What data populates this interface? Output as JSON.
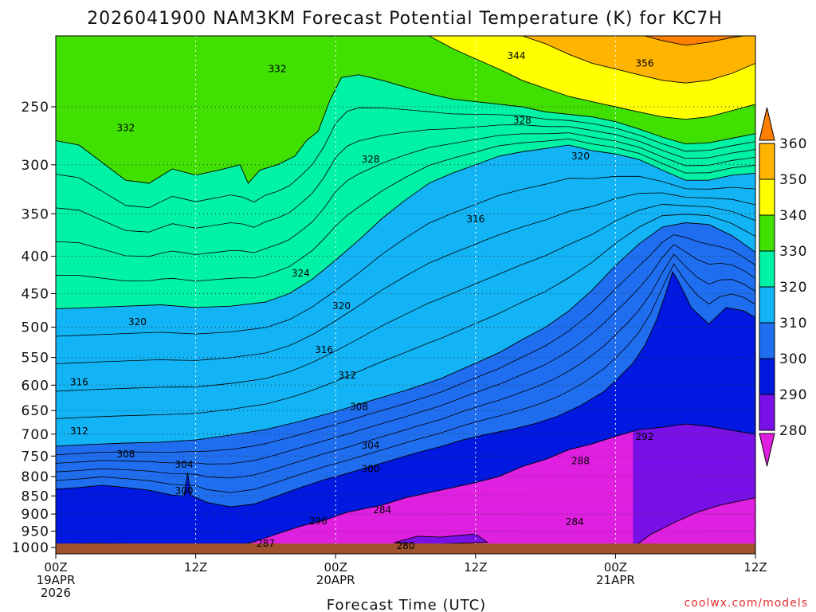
{
  "chart_data": {
    "type": "heatmap",
    "title": "2026041900 NAM3KM Forecast Potential Temperature (K) for KC7H",
    "xlabel": "Forecast Time (UTC)",
    "ylabel": "",
    "credit": "coolwx.com/models",
    "variable": "potential temperature",
    "units": "K",
    "x_range_hours": [
      0,
      60
    ],
    "y_axis_pressure": "hPa, log-pressure scale, inverted (1000 at bottom)",
    "y_range": [
      1020,
      200
    ],
    "x_ticks": [
      {
        "hour": 0,
        "labels": [
          "00Z",
          "19APR",
          "2026"
        ]
      },
      {
        "hour": 12,
        "labels": [
          "12Z"
        ]
      },
      {
        "hour": 24,
        "labels": [
          "00Z",
          "20APR"
        ]
      },
      {
        "hour": 36,
        "labels": [
          "12Z"
        ]
      },
      {
        "hour": 48,
        "labels": [
          "00Z",
          "21APR"
        ]
      },
      {
        "hour": 60,
        "labels": [
          "12Z"
        ]
      }
    ],
    "y_ticks": [
      250,
      300,
      350,
      400,
      450,
      500,
      550,
      600,
      650,
      700,
      750,
      800,
      850,
      900,
      950,
      1000
    ],
    "y_tick_labels": [
      "250",
      "300",
      "350",
      "400",
      "450",
      "500",
      "550",
      "600",
      "650",
      "700",
      "750",
      "800",
      "850",
      "900",
      "950",
      "1000"
    ],
    "colorbar": {
      "levels": [
        280,
        290,
        300,
        310,
        320,
        330,
        340,
        350,
        360
      ],
      "labels": [
        "280",
        "290",
        "300",
        "310",
        "320",
        "330",
        "340",
        "350",
        "360"
      ],
      "colors": [
        "#e020e0",
        "#7a10e8",
        "#0018e0",
        "#1f6ef0",
        "#12b4f5",
        "#00f2a4",
        "#40e000",
        "#ffff00",
        "#ffb400",
        "#ff7f00"
      ],
      "extend": "both"
    },
    "isotherm_interval_K": 2,
    "band_boundaries": [
      {
        "theta": 280,
        "pts": [
          [
            4,
            1000
          ],
          [
            6,
            990
          ],
          [
            9,
            1000
          ],
          [
            11,
            1000
          ]
        ]
      },
      {
        "theta": 280,
        "pts": [
          [
            29,
            985
          ],
          [
            31,
            965
          ],
          [
            33,
            968
          ],
          [
            36,
            958
          ],
          [
            37,
            983
          ],
          [
            32,
            990
          ],
          [
            29,
            985
          ]
        ]
      },
      {
        "theta": 280,
        "pts": [
          [
            49.5,
            1000
          ],
          [
            51,
            960
          ],
          [
            53,
            925
          ],
          [
            55,
            895
          ],
          [
            57,
            875
          ],
          [
            60,
            855
          ]
        ]
      },
      {
        "theta": 290,
        "pts": [
          [
            0,
            990
          ],
          [
            3,
            987
          ],
          [
            6,
            988
          ],
          [
            9,
            990
          ],
          [
            12,
            995
          ],
          [
            15,
            1000
          ],
          [
            17,
            982
          ],
          [
            19,
            958
          ],
          [
            21,
            935
          ],
          [
            23,
            918
          ],
          [
            25,
            895
          ],
          [
            28,
            875
          ],
          [
            30,
            855
          ],
          [
            33,
            835
          ],
          [
            36,
            815
          ],
          [
            38,
            800
          ],
          [
            40,
            775
          ],
          [
            42,
            758
          ],
          [
            44,
            735
          ],
          [
            46,
            722
          ],
          [
            48,
            705
          ],
          [
            50,
            690
          ],
          [
            52,
            685
          ],
          [
            54,
            678
          ],
          [
            56,
            683
          ],
          [
            58,
            692
          ],
          [
            60,
            700
          ]
        ]
      },
      {
        "theta": 300,
        "pts": [
          [
            0,
            832
          ],
          [
            2,
            828
          ],
          [
            4,
            822
          ],
          [
            6,
            828
          ],
          [
            8,
            835
          ],
          [
            10,
            848
          ],
          [
            11,
            850
          ],
          [
            11.3,
            790
          ],
          [
            11.6,
            848
          ],
          [
            13,
            868
          ],
          [
            15,
            880
          ],
          [
            17,
            872
          ],
          [
            19,
            850
          ],
          [
            21,
            828
          ],
          [
            23,
            808
          ],
          [
            25,
            792
          ],
          [
            27,
            775
          ],
          [
            29,
            758
          ],
          [
            31,
            742
          ],
          [
            33,
            728
          ],
          [
            35,
            712
          ],
          [
            37,
            700
          ],
          [
            39,
            690
          ],
          [
            41,
            678
          ],
          [
            43,
            662
          ],
          [
            45,
            640
          ],
          [
            47,
            612
          ],
          [
            48,
            592
          ],
          [
            49.5,
            560
          ],
          [
            50.5,
            530
          ],
          [
            51.5,
            490
          ],
          [
            52.3,
            450
          ],
          [
            52.9,
            420
          ],
          [
            53.4,
            433
          ],
          [
            54.5,
            470
          ],
          [
            56,
            495
          ],
          [
            57.5,
            470
          ],
          [
            59,
            475
          ],
          [
            60,
            485
          ]
        ]
      },
      {
        "theta": 310,
        "pts": [
          [
            0,
            727
          ],
          [
            3,
            723
          ],
          [
            6,
            720
          ],
          [
            9,
            718
          ],
          [
            12,
            713
          ],
          [
            15,
            702
          ],
          [
            18,
            690
          ],
          [
            21,
            672
          ],
          [
            24,
            652
          ],
          [
            27,
            630
          ],
          [
            30,
            610
          ],
          [
            33,
            588
          ],
          [
            36,
            560
          ],
          [
            38,
            542
          ],
          [
            40,
            520
          ],
          [
            42,
            500
          ],
          [
            44,
            475
          ],
          [
            46,
            445
          ],
          [
            48,
            412
          ],
          [
            50,
            385
          ],
          [
            52,
            365
          ],
          [
            54,
            360
          ],
          [
            56,
            362
          ],
          [
            58,
            375
          ],
          [
            60,
            395
          ]
        ]
      },
      {
        "theta": 320,
        "pts": [
          [
            0,
            472
          ],
          [
            3,
            470
          ],
          [
            6,
            468
          ],
          [
            9,
            466
          ],
          [
            12,
            470
          ],
          [
            15,
            468
          ],
          [
            18,
            462
          ],
          [
            20,
            450
          ],
          [
            22,
            430
          ],
          [
            24,
            405
          ],
          [
            26,
            380
          ],
          [
            28,
            355
          ],
          [
            30,
            335
          ],
          [
            32,
            318
          ],
          [
            34,
            308
          ],
          [
            36,
            300
          ],
          [
            38,
            292
          ],
          [
            40,
            288
          ],
          [
            42,
            285
          ],
          [
            44,
            282
          ],
          [
            46,
            287
          ],
          [
            48,
            290
          ],
          [
            50,
            295
          ],
          [
            52,
            305
          ],
          [
            54,
            315
          ],
          [
            56,
            315
          ],
          [
            58,
            310
          ],
          [
            60,
            308
          ]
        ]
      },
      {
        "theta": 330,
        "pts": [
          [
            0,
            278
          ],
          [
            2,
            282
          ],
          [
            4,
            298
          ],
          [
            6,
            315
          ],
          [
            8,
            318
          ],
          [
            10,
            304
          ],
          [
            12,
            310
          ],
          [
            14,
            305
          ],
          [
            15.8,
            300
          ],
          [
            16.5,
            318
          ],
          [
            17.5,
            305
          ],
          [
            19,
            300
          ],
          [
            20.5,
            292
          ],
          [
            21.5,
            278
          ],
          [
            22.5,
            270
          ],
          [
            23.5,
            245
          ],
          [
            24.5,
            228
          ],
          [
            26,
            226
          ],
          [
            28,
            230
          ],
          [
            30,
            235
          ],
          [
            32,
            240
          ],
          [
            34,
            244
          ],
          [
            36,
            246
          ],
          [
            38,
            248
          ],
          [
            40,
            250
          ],
          [
            42,
            254
          ],
          [
            44,
            256
          ],
          [
            46,
            258
          ],
          [
            48,
            262
          ],
          [
            50,
            268
          ],
          [
            52,
            275
          ],
          [
            54,
            281
          ],
          [
            56,
            280
          ],
          [
            58,
            276
          ],
          [
            60,
            272
          ]
        ]
      },
      {
        "theta": 340,
        "pts": [
          [
            32,
            200
          ],
          [
            34,
            208
          ],
          [
            36,
            215
          ],
          [
            38,
            222
          ],
          [
            40,
            230
          ],
          [
            42,
            236
          ],
          [
            44,
            242
          ],
          [
            46,
            246
          ],
          [
            48,
            250
          ],
          [
            50,
            254
          ],
          [
            52,
            258
          ],
          [
            54,
            260
          ],
          [
            56,
            258
          ],
          [
            58,
            253
          ],
          [
            60,
            248
          ]
        ]
      },
      {
        "theta": 350,
        "pts": [
          [
            40,
            200
          ],
          [
            42,
            205
          ],
          [
            44,
            212
          ],
          [
            46,
            218
          ],
          [
            48,
            222
          ],
          [
            50,
            226
          ],
          [
            52,
            230
          ],
          [
            54,
            232
          ],
          [
            56,
            230
          ],
          [
            58,
            225
          ],
          [
            60,
            218
          ]
        ]
      },
      {
        "theta": 360,
        "pts": [
          [
            50.5,
            200
          ],
          [
            52,
            203
          ],
          [
            54,
            206
          ],
          [
            56,
            204
          ],
          [
            58,
            201
          ],
          [
            59,
            200
          ]
        ]
      }
    ],
    "contour_labels": [
      {
        "text": "332",
        "x": 19.0,
        "y": 222
      },
      {
        "text": "332",
        "x": 6.0,
        "y": 267
      },
      {
        "text": "344",
        "x": 39.5,
        "y": 213
      },
      {
        "text": "356",
        "x": 50.5,
        "y": 218
      },
      {
        "text": "328",
        "x": 40.0,
        "y": 261
      },
      {
        "text": "328",
        "x": 27.0,
        "y": 295
      },
      {
        "text": "320",
        "x": 45.0,
        "y": 292
      },
      {
        "text": "316",
        "x": 36.0,
        "y": 356
      },
      {
        "text": "324",
        "x": 21.0,
        "y": 422
      },
      {
        "text": "320",
        "x": 24.5,
        "y": 468
      },
      {
        "text": "320",
        "x": 7.0,
        "y": 492
      },
      {
        "text": "316",
        "x": 23.0,
        "y": 537
      },
      {
        "text": "316",
        "x": 2.0,
        "y": 594
      },
      {
        "text": "312",
        "x": 25.0,
        "y": 582
      },
      {
        "text": "308",
        "x": 26.0,
        "y": 642
      },
      {
        "text": "312",
        "x": 2.0,
        "y": 693
      },
      {
        "text": "304",
        "x": 27.0,
        "y": 725
      },
      {
        "text": "308",
        "x": 6.0,
        "y": 746
      },
      {
        "text": "304",
        "x": 11.0,
        "y": 770
      },
      {
        "text": "300",
        "x": 27.0,
        "y": 781
      },
      {
        "text": "292",
        "x": 50.5,
        "y": 706
      },
      {
        "text": "288",
        "x": 45.0,
        "y": 762
      },
      {
        "text": "300",
        "x": 11.0,
        "y": 837
      },
      {
        "text": "284",
        "x": 28.0,
        "y": 889
      },
      {
        "text": "296",
        "x": 22.5,
        "y": 920
      },
      {
        "text": "284",
        "x": 44.5,
        "y": 923
      },
      {
        "text": "287",
        "x": 18.0,
        "y": 987
      },
      {
        "text": "280",
        "x": 30.0,
        "y": 995
      }
    ]
  }
}
